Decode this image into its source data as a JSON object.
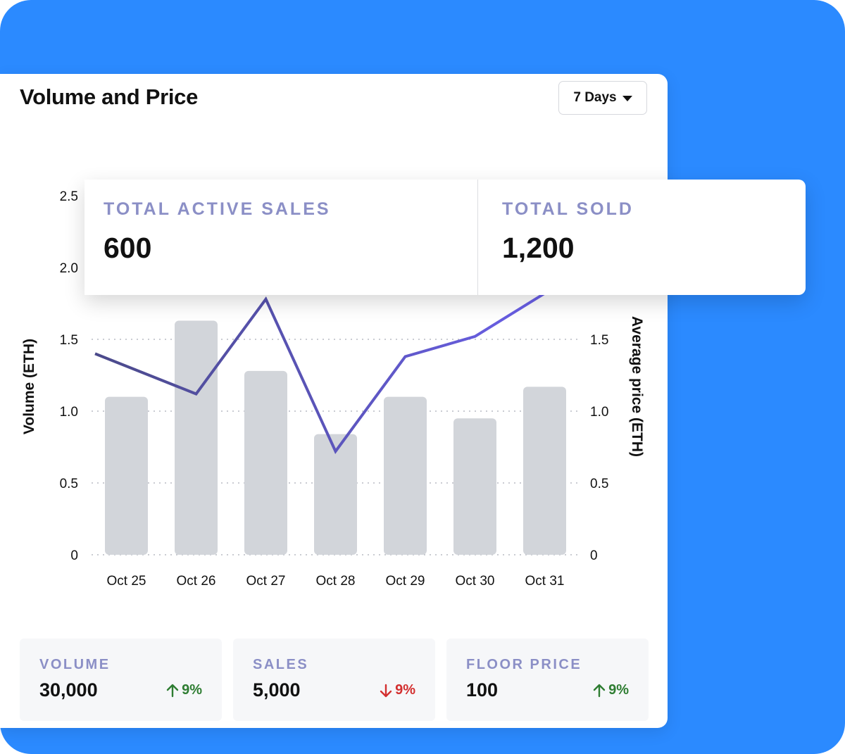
{
  "header": {
    "title": "Volume and Price",
    "range_label": "7 Days"
  },
  "chart_data": {
    "type": "bar",
    "categories": [
      "Oct 25",
      "Oct 26",
      "Oct 27",
      "Oct 28",
      "Oct 29",
      "Oct 30",
      "Oct 31"
    ],
    "series": [
      {
        "type": "bar",
        "axis": "left",
        "values": [
          1.1,
          1.63,
          1.28,
          0.84,
          1.1,
          0.95,
          1.17
        ]
      },
      {
        "type": "line",
        "axis": "right",
        "values": [
          1.4,
          1.12,
          1.78,
          0.72,
          1.38,
          1.52,
          1.82
        ]
      }
    ],
    "ylabel": "Volume (ETH)",
    "y2label": "Average price (ETH)",
    "ylim": [
      0,
      2.5
    ],
    "y2lim": [
      0,
      2.5
    ],
    "yticks": [
      "0",
      "0.5",
      "1.0",
      "1.5",
      "2.0",
      "2.5"
    ],
    "y2ticks": [
      "0",
      "0.5",
      "1.0",
      "1.5"
    ],
    "grid": "dotted horizontal",
    "colors": {
      "bar": "#d2d5da",
      "line_start": "#4b4a8a",
      "line_end": "#6a5fe8"
    }
  },
  "overlay": {
    "active_label": "TOTAL ACTIVE SALES",
    "active_value": "600",
    "sold_label": "TOTAL SOLD",
    "sold_value": "1,200"
  },
  "metrics": [
    {
      "label": "VOLUME",
      "value": "30,000",
      "change": "9%",
      "direction": "up",
      "color": "#2e7d32"
    },
    {
      "label": "SALES",
      "value": "5,000",
      "change": "9%",
      "direction": "down",
      "color": "#d32f2f"
    },
    {
      "label": "FLOOR PRICE",
      "value": "100",
      "change": "9%",
      "direction": "up",
      "color": "#2e7d32"
    }
  ],
  "colors": {
    "background": "#2b8aff",
    "label_accent": "#8b8fc6"
  }
}
